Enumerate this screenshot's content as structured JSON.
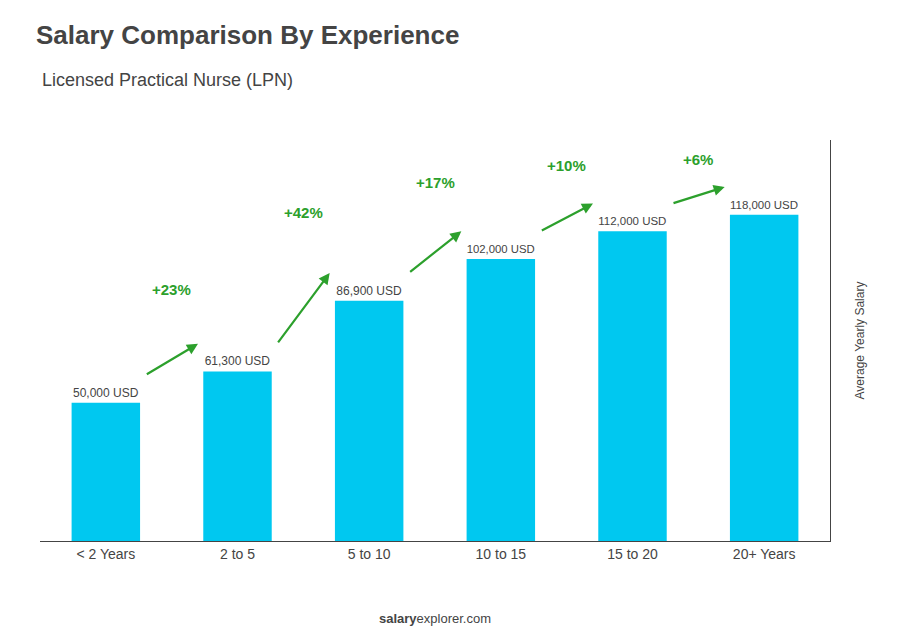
{
  "chart_data": {
    "type": "bar",
    "title": "Salary Comparison By Experience",
    "subtitle": "Licensed Practical Nurse (LPN)",
    "categories": [
      "< 2 Years",
      "2 to 5",
      "5 to 10",
      "10 to 15",
      "15 to 20",
      "20+ Years"
    ],
    "values": [
      50000,
      61300,
      86900,
      102000,
      112000,
      118000
    ],
    "value_labels": [
      "50,000 USD",
      "61,300 USD",
      "86,900 USD",
      "102,000 USD",
      "112,000 USD",
      "118,000 USD"
    ],
    "data_labels": true,
    "color": "#00c8f0",
    "ylabel": "Average Yearly Salary",
    "ylim": [
      0,
      145000
    ],
    "annotations": [
      "+23%",
      "+42%",
      "+17%",
      "+10%",
      "+6%"
    ],
    "source": [
      "salary",
      "explorer.com"
    ],
    "grid": false,
    "tick_labels": "x"
  }
}
